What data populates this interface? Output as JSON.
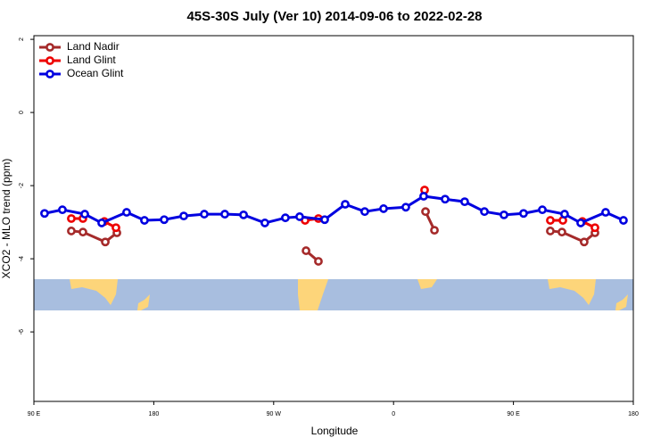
{
  "chart_data": {
    "type": "line",
    "title": "45S-30S July (Ver 10)   2014-09-06 to 2022-02-28",
    "x_label": "Longitude",
    "y_label": "XCO2 - MLO trend (ppm)",
    "xlim": [
      90,
      540
    ],
    "xticks": [
      {
        "value": 90,
        "label": "90 E"
      },
      {
        "value": 180,
        "label": "180"
      },
      {
        "value": 270,
        "label": "90 W"
      },
      {
        "value": 360,
        "label": "0"
      },
      {
        "value": 450,
        "label": "90 E"
      },
      {
        "value": 540,
        "label": "180"
      }
    ],
    "ylim": [
      -7.9,
      2.1
    ],
    "yticks": [
      2,
      0,
      -2,
      -4,
      -6
    ],
    "legend": "upper left",
    "series": [
      {
        "name": "Land Nadir",
        "color": "#a52a2a",
        "x": [
          118.1,
          126.8,
          143.6,
          152.3,
          null,
          294.3,
          303.6,
          null,
          384.0,
          390.7,
          null,
          477.7,
          486.4,
          503.1,
          511.2
        ],
        "values": [
          -3.24,
          -3.27,
          -3.54,
          -3.29,
          null,
          -3.78,
          -4.07,
          null,
          -2.71,
          -3.22,
          null,
          -3.24,
          -3.27,
          -3.54,
          -3.29
        ]
      },
      {
        "name": "Land Glint",
        "color": "#ee0000",
        "x": [
          118.1,
          126.8,
          null,
          142.9,
          151.6,
          null,
          293.6,
          303.6,
          null,
          383.3,
          null,
          477.7,
          487.1,
          null,
          501.8,
          511.2
        ],
        "values": [
          -2.9,
          -2.9,
          null,
          -2.98,
          -3.15,
          null,
          -2.95,
          -2.9,
          null,
          -2.12,
          null,
          -2.95,
          -2.95,
          null,
          -2.98,
          -3.15
        ]
      },
      {
        "name": "Ocean Glint",
        "color": "#0000e0",
        "x": [
          98.0,
          111.4,
          128.2,
          140.9,
          159.6,
          173.0,
          187.8,
          202.5,
          217.9,
          233.3,
          247.4,
          263.4,
          278.8,
          289.5,
          308.3,
          323.7,
          338.4,
          352.5,
          369.2,
          382.6,
          398.7,
          413.4,
          428.2,
          442.9,
          457.6,
          471.7,
          488.4,
          500.5,
          519.2,
          532.6
        ],
        "values": [
          -2.76,
          -2.66,
          -2.78,
          -3.02,
          -2.73,
          -2.95,
          -2.93,
          -2.83,
          -2.78,
          -2.78,
          -2.8,
          -3.02,
          -2.88,
          -2.85,
          -2.93,
          -2.51,
          -2.71,
          -2.63,
          -2.59,
          -2.29,
          -2.37,
          -2.44,
          -2.71,
          -2.8,
          -2.76,
          -2.66,
          -2.78,
          -3.02,
          -2.73,
          -2.95
        ]
      }
    ]
  }
}
